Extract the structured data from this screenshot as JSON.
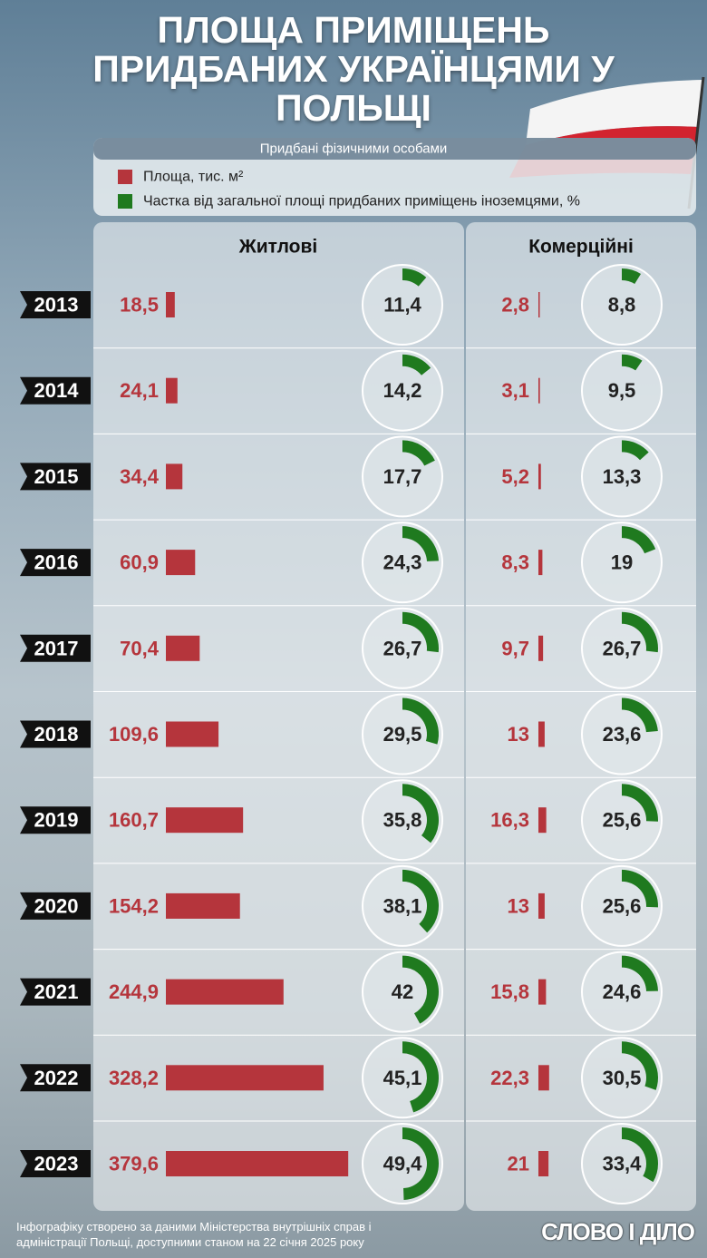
{
  "chart_data": {
    "type": "bar-ring",
    "title": "ПЛОЩА ПРИМІЩЕНЬ ПРИДБАНИХ УКРАЇНЦЯМИ У ПОЛЬЩІ",
    "subtitle": "Придбані фізичними особами",
    "categories": [
      "2013",
      "2014",
      "2015",
      "2016",
      "2017",
      "2018",
      "2019",
      "2020",
      "2021",
      "2022",
      "2023"
    ],
    "legend": [
      {
        "name": "Площа, тис. м²",
        "color": "#b5353c"
      },
      {
        "name": "Частка від загальної площі придбаних приміщень іноземцями, %",
        "color": "#1f7a1f"
      }
    ],
    "panels": [
      {
        "name": "Житлові",
        "series": [
          {
            "values": [
              18.5,
              24.1,
              34.4,
              60.9,
              70.4,
              109.6,
              160.7,
              154.2,
              244.9,
              328.2,
              379.6
            ],
            "value_labels": [
              "18,5",
              "24,1",
              "34,4",
              "60,9",
              "70,4",
              "109,6",
              "160,7",
              "154,2",
              "244,9",
              "328,2",
              "379,6"
            ]
          },
          {
            "values": [
              11.4,
              14.2,
              17.7,
              24.3,
              26.7,
              29.5,
              35.8,
              38.1,
              42,
              45.1,
              49.4
            ],
            "value_labels": [
              "11,4",
              "14,2",
              "17,7",
              "24,3",
              "26,7",
              "29,5",
              "35,8",
              "38,1",
              "42",
              "45,1",
              "49,4"
            ]
          }
        ]
      },
      {
        "name": "Комерційні",
        "series": [
          {
            "values": [
              2.8,
              3.1,
              5.2,
              8.3,
              9.7,
              13,
              16.3,
              13,
              15.8,
              22.3,
              21
            ],
            "value_labels": [
              "2,8",
              "3,1",
              "5,2",
              "8,3",
              "9,7",
              "13",
              "16,3",
              "13",
              "15,8",
              "22,3",
              "21"
            ]
          },
          {
            "values": [
              8.8,
              9.5,
              13.3,
              19,
              26.7,
              23.6,
              25.6,
              25.6,
              24.6,
              30.5,
              33.4
            ],
            "value_labels": [
              "8,8",
              "9,5",
              "13,3",
              "19",
              "26,7",
              "23,6",
              "25,6",
              "25,6",
              "24,6",
              "30,5",
              "33,4"
            ]
          }
        ]
      }
    ],
    "footnote": "Інфографіку створено за даними Міністерства внутрішніх справ і адміністрації Польщі, доступними станом на 22 січня 2025 року",
    "brand": "СЛОВО І ДІЛО"
  }
}
